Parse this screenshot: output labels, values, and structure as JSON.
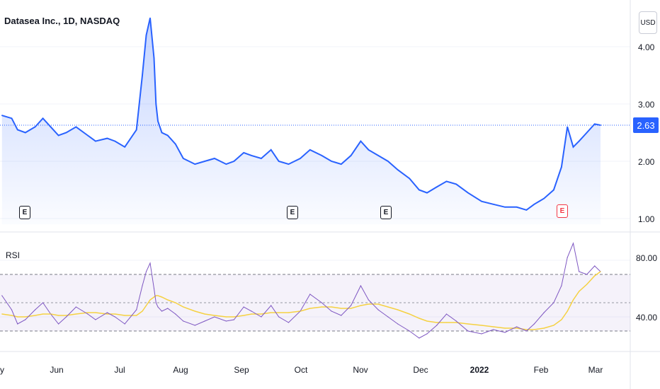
{
  "header": {
    "title": "Datasea Inc., 1D, NASDAQ",
    "currency": "USD"
  },
  "price_axis": {
    "ticks": [
      "4.00",
      "3.00",
      "2.00",
      "1.00"
    ],
    "last_price": "2.63"
  },
  "rsi_panel": {
    "label": "RSI",
    "ticks": [
      "80.00",
      "40.00"
    ],
    "upper_band": 70,
    "lower_band": 30,
    "mid": 50
  },
  "time_axis": {
    "labels": [
      "y",
      "Jun",
      "Jul",
      "Aug",
      "Sep",
      "Oct",
      "Nov",
      "Dec",
      "2022",
      "Feb",
      "Mar"
    ]
  },
  "earnings_markers": [
    {
      "label": "E",
      "future": false
    },
    {
      "label": "E",
      "future": false
    },
    {
      "label": "E",
      "future": false
    },
    {
      "label": "E",
      "future": true
    }
  ],
  "colors": {
    "price_line": "#2962ff",
    "rsi_line": "#7e57c2",
    "rsi_ma": "#f5d142",
    "badge": "#2962ff",
    "earnings_future": "#f23645"
  },
  "chart_data": [
    {
      "type": "area",
      "title": "Datasea Inc., 1D, NASDAQ",
      "ylim": [
        0.9,
        4.6
      ],
      "x": [
        "2021-05-01",
        "2021-05-06",
        "2021-05-09",
        "2021-05-13",
        "2021-05-18",
        "2021-05-22",
        "2021-05-26",
        "2021-05-30",
        "2021-06-03",
        "2021-06-08",
        "2021-06-14",
        "2021-06-18",
        "2021-06-24",
        "2021-06-28",
        "2021-07-03",
        "2021-07-09",
        "2021-07-12",
        "2021-07-14",
        "2021-07-16",
        "2021-07-18",
        "2021-07-19",
        "2021-07-20",
        "2021-07-22",
        "2021-07-25",
        "2021-07-29",
        "2021-08-02",
        "2021-08-08",
        "2021-08-13",
        "2021-08-18",
        "2021-08-24",
        "2021-08-28",
        "2021-09-02",
        "2021-09-06",
        "2021-09-11",
        "2021-09-16",
        "2021-09-20",
        "2021-09-25",
        "2021-10-01",
        "2021-10-06",
        "2021-10-12",
        "2021-10-17",
        "2021-10-22",
        "2021-10-27",
        "2021-11-01",
        "2021-11-05",
        "2021-11-10",
        "2021-11-15",
        "2021-11-20",
        "2021-11-26",
        "2021-12-01",
        "2021-12-05",
        "2021-12-10",
        "2021-12-15",
        "2021-12-20",
        "2021-12-26",
        "2022-01-02",
        "2022-01-08",
        "2022-01-14",
        "2022-01-20",
        "2022-01-25",
        "2022-01-29",
        "2022-02-03",
        "2022-02-08",
        "2022-02-12",
        "2022-02-15",
        "2022-02-18",
        "2022-02-21",
        "2022-02-25",
        "2022-03-01",
        "2022-03-04"
      ],
      "series": [
        {
          "values": [
            2.8,
            2.75,
            2.55,
            2.5,
            2.6,
            2.75,
            2.6,
            2.45,
            2.5,
            2.6,
            2.45,
            2.35,
            2.4,
            2.35,
            2.25,
            2.55,
            3.5,
            4.2,
            4.5,
            3.8,
            3.0,
            2.7,
            2.5,
            2.45,
            2.3,
            2.05,
            1.95,
            2.0,
            2.05,
            1.95,
            2.0,
            2.15,
            2.1,
            2.05,
            2.2,
            2.0,
            1.95,
            2.05,
            2.2,
            2.1,
            2.0,
            1.95,
            2.1,
            2.35,
            2.2,
            2.1,
            2.0,
            1.85,
            1.7,
            1.5,
            1.45,
            1.55,
            1.65,
            1.6,
            1.45,
            1.3,
            1.25,
            1.2,
            1.2,
            1.15,
            1.25,
            1.35,
            1.5,
            1.9,
            2.6,
            2.25,
            2.35,
            2.5,
            2.65,
            2.63
          ]
        }
      ]
    },
    {
      "type": "line",
      "title": "RSI",
      "ylim": [
        15,
        95
      ],
      "x": [
        "2021-05-01",
        "2021-05-06",
        "2021-05-09",
        "2021-05-13",
        "2021-05-18",
        "2021-05-22",
        "2021-05-26",
        "2021-05-30",
        "2021-06-03",
        "2021-06-08",
        "2021-06-14",
        "2021-06-18",
        "2021-06-24",
        "2021-06-28",
        "2021-07-03",
        "2021-07-09",
        "2021-07-12",
        "2021-07-14",
        "2021-07-16",
        "2021-07-18",
        "2021-07-19",
        "2021-07-20",
        "2021-07-22",
        "2021-07-25",
        "2021-07-29",
        "2021-08-02",
        "2021-08-08",
        "2021-08-13",
        "2021-08-18",
        "2021-08-24",
        "2021-08-28",
        "2021-09-02",
        "2021-09-06",
        "2021-09-11",
        "2021-09-16",
        "2021-09-20",
        "2021-09-25",
        "2021-10-01",
        "2021-10-06",
        "2021-10-12",
        "2021-10-17",
        "2021-10-22",
        "2021-10-27",
        "2021-11-01",
        "2021-11-05",
        "2021-11-10",
        "2021-11-15",
        "2021-11-20",
        "2021-11-26",
        "2021-12-01",
        "2021-12-05",
        "2021-12-10",
        "2021-12-15",
        "2021-12-20",
        "2021-12-26",
        "2022-01-02",
        "2022-01-08",
        "2022-01-14",
        "2022-01-20",
        "2022-01-25",
        "2022-01-29",
        "2022-02-03",
        "2022-02-08",
        "2022-02-12",
        "2022-02-15",
        "2022-02-18",
        "2022-02-21",
        "2022-02-25",
        "2022-03-01",
        "2022-03-04"
      ],
      "series": [
        {
          "values": [
            55,
            45,
            35,
            38,
            45,
            50,
            42,
            35,
            40,
            47,
            42,
            38,
            43,
            40,
            35,
            45,
            62,
            72,
            78,
            60,
            50,
            47,
            44,
            46,
            42,
            37,
            34,
            37,
            40,
            37,
            38,
            47,
            44,
            40,
            48,
            40,
            36,
            44,
            56,
            50,
            44,
            41,
            48,
            62,
            52,
            45,
            40,
            35,
            30,
            25,
            28,
            34,
            42,
            37,
            30,
            28,
            31,
            29,
            33,
            30,
            35,
            43,
            50,
            62,
            82,
            92,
            72,
            70,
            76,
            72
          ]
        },
        {
          "values": [
            42,
            41,
            40,
            40,
            41,
            42,
            42,
            41,
            41,
            42,
            43,
            43,
            42,
            42,
            41,
            41,
            44,
            48,
            52,
            54,
            55,
            55,
            54,
            52,
            50,
            47,
            44,
            42,
            41,
            40,
            40,
            41,
            42,
            42,
            43,
            43,
            43,
            44,
            46,
            47,
            47,
            46,
            46,
            48,
            49,
            49,
            47,
            45,
            42,
            39,
            37,
            36,
            36,
            36,
            35,
            34,
            33,
            32,
            32,
            31,
            31,
            32,
            34,
            38,
            44,
            52,
            58,
            63,
            69,
            72
          ]
        }
      ]
    }
  ]
}
